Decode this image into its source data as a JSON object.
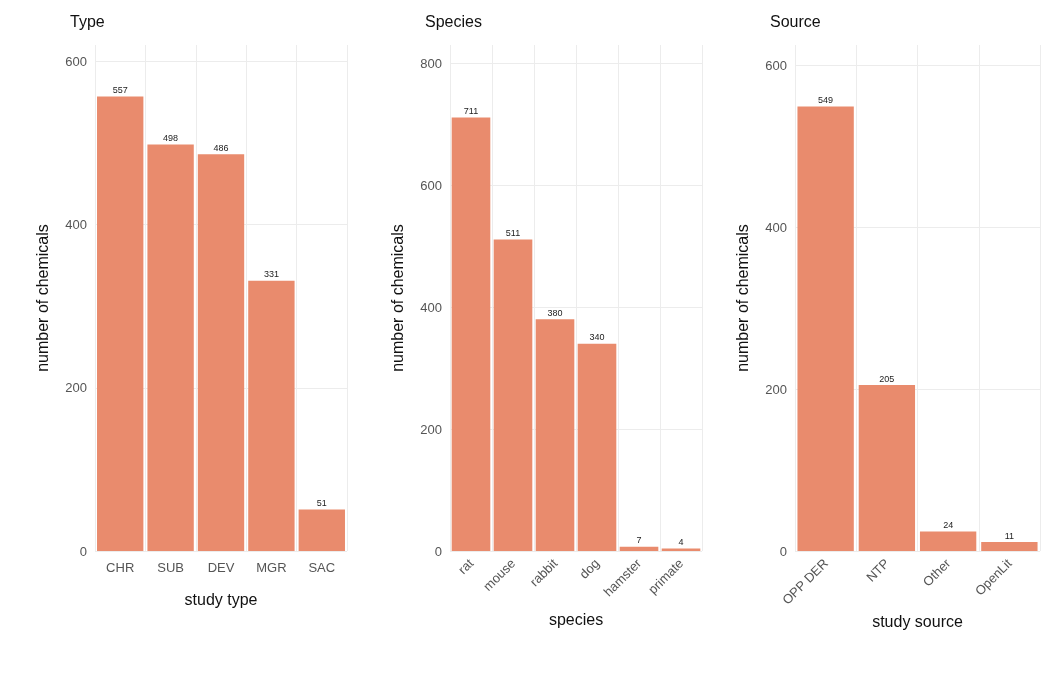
{
  "chart_data": [
    {
      "type": "bar",
      "title": "Type",
      "xlabel": "study type",
      "ylabel": "number of chemicals",
      "categories": [
        "CHR",
        "SUB",
        "DEV",
        "MGR",
        "SAC"
      ],
      "values": [
        557,
        498,
        486,
        331,
        51
      ],
      "color": "#e98b6d",
      "ylim": [
        0,
        620
      ],
      "yticks": [
        0,
        200,
        400,
        600
      ],
      "grid": true,
      "data_labels": true
    },
    {
      "type": "bar",
      "title": "Species",
      "xlabel": "species",
      "ylabel": "number of chemicals",
      "categories": [
        "rat",
        "mouse",
        "rabbit",
        "dog",
        "hamster",
        "primate"
      ],
      "values": [
        711,
        511,
        380,
        340,
        7,
        4
      ],
      "color": "#e98b6d",
      "ylim": [
        0,
        830
      ],
      "yticks": [
        0,
        200,
        400,
        600,
        800
      ],
      "grid": true,
      "data_labels": true
    },
    {
      "type": "bar",
      "title": "Source",
      "xlabel": "study source",
      "ylabel": "number of chemicals",
      "categories": [
        "OPP DER",
        "NTP",
        "Other",
        "OpenLit"
      ],
      "values": [
        549,
        205,
        24,
        11
      ],
      "color": "#e98b6d",
      "ylim": [
        0,
        625
      ],
      "yticks": [
        0,
        200,
        400,
        600
      ],
      "grid": true,
      "data_labels": true
    }
  ]
}
